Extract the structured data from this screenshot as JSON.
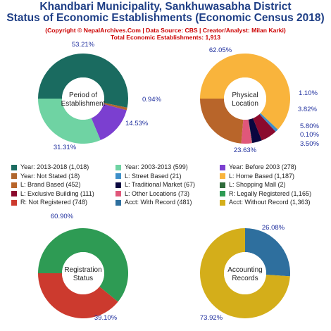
{
  "header": {
    "title_line1": "Khandbari Municipality, Sankhuwasabha District",
    "title_line2": "Status of Economic Establishments (Economic Census 2018)",
    "subtitle": "(Copyright © NepalArchives.Com | Data Source: CBS | Creator/Analyst: Milan Karki)",
    "total": "Total Economic Establishments: 1,913"
  },
  "colors": {
    "label": "#1f2f9e",
    "center_text": "#222222"
  },
  "chart_data": [
    {
      "type": "pie",
      "variant": "donut",
      "center_label": [
        "Period of",
        "Establishment"
      ],
      "slices": [
        {
          "label": "Year: 2013-2018",
          "value": 1018,
          "pct": "53.21%",
          "color": "#1a6b60"
        },
        {
          "label": "Year: Not Stated",
          "value": 18,
          "pct": "0.94%",
          "color": "#b0672f"
        },
        {
          "label": "Year: Before 2003",
          "value": 278,
          "pct": "14.53%",
          "color": "#7b3fd0"
        },
        {
          "label": "Year: 2003-2013",
          "value": 599,
          "pct": "31.31%",
          "color": "#6fd3a3"
        }
      ]
    },
    {
      "type": "pie",
      "variant": "donut",
      "center_label": [
        "Physical",
        "Location"
      ],
      "slices": [
        {
          "label": "L: Home Based",
          "value": 1187,
          "pct": "62.05%",
          "color": "#f9b43c"
        },
        {
          "label": "L: Street Based",
          "value": 21,
          "pct": "1.10%",
          "color": "#3d8fc9"
        },
        {
          "label": "L: Exclusive Building",
          "value": 111,
          "pct": "5.80%",
          "color": "#8b0a2e"
        },
        {
          "label": "L: Traditional Market",
          "value": 67,
          "pct": "3.50%",
          "color": "#09063f"
        },
        {
          "label": "L: Shopping Mall",
          "value": 2,
          "pct": "0.10%",
          "color": "#2f6b3a"
        },
        {
          "label": "L: Other Locations",
          "value": 73,
          "pct": "3.82%",
          "color": "#e0577a"
        },
        {
          "label": "L: Brand Based",
          "value": 452,
          "pct": "23.63%",
          "color": "#b8652a"
        }
      ]
    },
    {
      "type": "pie",
      "variant": "donut",
      "center_label": [
        "Registration",
        "Status"
      ],
      "slices": [
        {
          "label": "R: Legally Registered",
          "value": 1165,
          "pct": "60.90%",
          "color": "#2e9b54"
        },
        {
          "label": "R: Not Registered",
          "value": 748,
          "pct": "39.10%",
          "color": "#cc3a2e"
        }
      ]
    },
    {
      "type": "pie",
      "variant": "donut",
      "center_label": [
        "Accounting",
        "Records"
      ],
      "slices": [
        {
          "label": "Acct: With Record",
          "value": 481,
          "pct": "26.08%",
          "color": "#2e6f9e"
        },
        {
          "label": "Acct: Without Record",
          "value": 1363,
          "pct": "73.92%",
          "color": "#d4ae1a"
        }
      ]
    }
  ],
  "legend": [
    {
      "text": "Year: 2013-2018 (1,018)",
      "color": "#1a6b60"
    },
    {
      "text": "Year: 2003-2013 (599)",
      "color": "#6fd3a3"
    },
    {
      "text": "Year: Before 2003 (278)",
      "color": "#7b3fd0"
    },
    {
      "text": "Year: Not Stated (18)",
      "color": "#b0672f"
    },
    {
      "text": "L: Street Based (21)",
      "color": "#3d8fc9"
    },
    {
      "text": "L: Home Based (1,187)",
      "color": "#f9b43c"
    },
    {
      "text": "L: Brand Based (452)",
      "color": "#b8652a"
    },
    {
      "text": "L: Traditional Market (67)",
      "color": "#09063f"
    },
    {
      "text": "L: Shopping Mall (2)",
      "color": "#2f6b3a"
    },
    {
      "text": "L: Exclusive Building (111)",
      "color": "#8b0a2e"
    },
    {
      "text": "L: Other Locations (73)",
      "color": "#e0577a"
    },
    {
      "text": "R: Legally Registered (1,165)",
      "color": "#2e9b54"
    },
    {
      "text": "R: Not Registered (748)",
      "color": "#cc3a2e"
    },
    {
      "text": "Acct: With Record (481)",
      "color": "#2e6f9e"
    },
    {
      "text": "Acct: Without Record (1,363)",
      "color": "#d4ae1a"
    }
  ]
}
